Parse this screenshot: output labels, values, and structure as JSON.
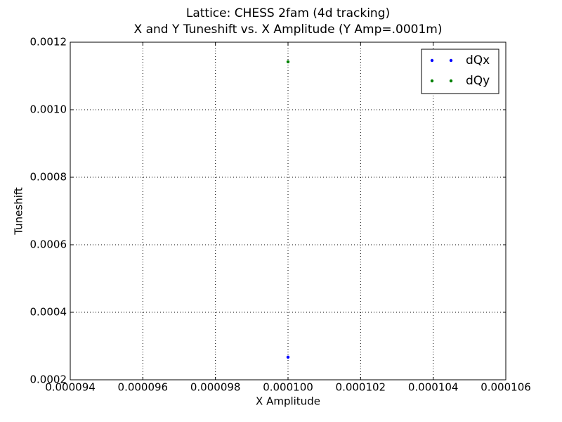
{
  "chart_data": {
    "type": "scatter",
    "title": "Lattice: CHESS 2fam (4d tracking)",
    "subtitle": "X and Y Tuneshift vs. X Amplitude (Y Amp=.0001m)",
    "x_label": "X Amplitude",
    "y_label": "Tuneshift",
    "series": [
      {
        "name": "dQx",
        "color": "#0000ff",
        "x": [
          {
            "value": 0.0001,
            "label": "0.000100"
          }
        ],
        "values": [
          0.000267
        ]
      },
      {
        "name": "dQy",
        "color": "#008000",
        "x": [
          {
            "value": 0.0001,
            "label": "0.000100"
          }
        ],
        "values": [
          0.001142
        ]
      }
    ],
    "xlim": [
      9.4e-05,
      0.000106
    ],
    "xticks": [
      9.4e-05,
      9.6e-05,
      9.8e-05,
      {
        "value": 0.0001,
        "label": "0.000100"
      },
      0.000102,
      0.000104,
      0.000106
    ],
    "ylim": [
      0.0002,
      0.0012
    ],
    "yticks": [
      0.0002,
      0.0004,
      0.0006,
      0.0008,
      {
        "value": 0.001,
        "label": "0.0010"
      },
      0.0012
    ],
    "grid": true,
    "legend": "upper right"
  }
}
